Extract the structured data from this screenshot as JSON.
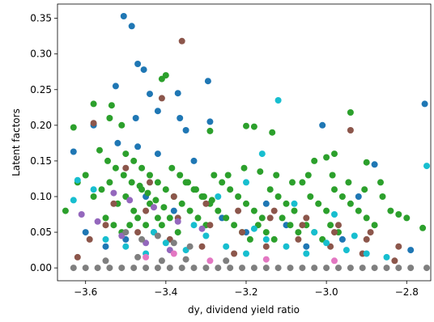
{
  "chart_data": {
    "type": "scatter",
    "title": "",
    "xlabel": "dy, dividend yield ratio",
    "ylabel": "Latent factors",
    "xlim": [
      -3.67,
      -2.74
    ],
    "ylim": [
      -0.018,
      0.37
    ],
    "x_ticks": [
      -3.6,
      -3.4,
      -3.2,
      -3.0,
      -2.8
    ],
    "x_tick_labels": [
      "−3.6",
      "−3.4",
      "−3.2",
      "−3.0",
      "−2.8"
    ],
    "y_ticks": [
      0.0,
      0.05,
      0.1,
      0.15,
      0.2,
      0.25,
      0.3,
      0.35
    ],
    "y_tick_labels": [
      "0.00",
      "0.05",
      "0.10",
      "0.15",
      "0.20",
      "0.25",
      "0.30",
      "0.35"
    ],
    "grid": false,
    "legend": "none",
    "colors": [
      "#1f77b4",
      "#2ca02c",
      "#8c564b",
      "#17becf",
      "#9467bd",
      "#e377c2",
      "#7f7f7f"
    ],
    "series": [
      {
        "color": "#1f77b4",
        "points": [
          [
            -3.505,
            0.353
          ],
          [
            -3.485,
            0.339
          ],
          [
            -3.47,
            0.286
          ],
          [
            -3.455,
            0.278
          ],
          [
            -3.295,
            0.262
          ],
          [
            -3.525,
            0.255
          ],
          [
            -3.37,
            0.245
          ],
          [
            -3.44,
            0.244
          ],
          [
            -3.42,
            0.22
          ],
          [
            -3.365,
            0.21
          ],
          [
            -3.475,
            0.21
          ],
          [
            -3.58,
            0.2
          ],
          [
            -3.35,
            0.193
          ],
          [
            -3.01,
            0.2
          ],
          [
            -3.63,
            0.163
          ],
          [
            -3.47,
            0.17
          ],
          [
            -3.52,
            0.175
          ],
          [
            -3.42,
            0.16
          ],
          [
            -3.33,
            0.15
          ],
          [
            -3.29,
            0.205
          ],
          [
            -2.755,
            0.23
          ],
          [
            -2.88,
            0.145
          ],
          [
            -3.45,
            0.1
          ],
          [
            -3.55,
            0.03
          ],
          [
            -3.2,
            0.05
          ],
          [
            -3.1,
            0.06
          ],
          [
            -2.96,
            0.04
          ],
          [
            -2.79,
            0.025
          ],
          [
            -3.38,
            0.08
          ],
          [
            -3.26,
            0.07
          ],
          [
            -3.15,
            0.09
          ],
          [
            -3.05,
            0.03
          ],
          [
            -2.92,
            0.1
          ],
          [
            -3.6,
            0.05
          ],
          [
            -3.5,
            0.04
          ]
        ]
      },
      {
        "color": "#2ca02c",
        "points": [
          [
            -3.4,
            0.27
          ],
          [
            -3.41,
            0.265
          ],
          [
            -3.58,
            0.23
          ],
          [
            -3.535,
            0.228
          ],
          [
            -3.54,
            0.21
          ],
          [
            -3.51,
            0.2
          ],
          [
            -3.63,
            0.197
          ],
          [
            -3.2,
            0.199
          ],
          [
            -3.18,
            0.198
          ],
          [
            -3.135,
            0.19
          ],
          [
            -3.29,
            0.192
          ],
          [
            -2.94,
            0.218
          ],
          [
            -2.98,
            0.16
          ],
          [
            -3.0,
            0.155
          ],
          [
            -3.03,
            0.15
          ],
          [
            -2.9,
            0.148
          ],
          [
            -3.5,
            0.16
          ],
          [
            -3.48,
            0.15
          ],
          [
            -3.46,
            0.14
          ],
          [
            -3.44,
            0.13
          ],
          [
            -3.42,
            0.12
          ],
          [
            -3.4,
            0.11
          ],
          [
            -3.38,
            0.1
          ],
          [
            -3.36,
            0.09
          ],
          [
            -3.34,
            0.08
          ],
          [
            -3.32,
            0.07
          ],
          [
            -3.3,
            0.06
          ],
          [
            -3.28,
            0.13
          ],
          [
            -3.26,
            0.12
          ],
          [
            -3.24,
            0.11
          ],
          [
            -3.22,
            0.1
          ],
          [
            -3.2,
            0.09
          ],
          [
            -3.18,
            0.08
          ],
          [
            -3.16,
            0.07
          ],
          [
            -3.14,
            0.11
          ],
          [
            -3.12,
            0.1
          ],
          [
            -3.1,
            0.09
          ],
          [
            -3.08,
            0.08
          ],
          [
            -3.06,
            0.12
          ],
          [
            -3.04,
            0.1
          ],
          [
            -3.02,
            0.09
          ],
          [
            -3.0,
            0.08
          ],
          [
            -2.98,
            0.11
          ],
          [
            -2.96,
            0.1
          ],
          [
            -2.94,
            0.09
          ],
          [
            -2.92,
            0.08
          ],
          [
            -2.9,
            0.07
          ],
          [
            -2.88,
            0.06
          ],
          [
            -2.86,
            0.1
          ],
          [
            -2.84,
            0.08
          ],
          [
            -2.82,
            0.075
          ],
          [
            -2.8,
            0.07
          ],
          [
            -2.76,
            0.056
          ],
          [
            -3.65,
            0.08
          ],
          [
            -3.62,
            0.12
          ],
          [
            -3.6,
            0.13
          ],
          [
            -3.58,
            0.1
          ],
          [
            -3.56,
            0.11
          ],
          [
            -3.54,
            0.12
          ],
          [
            -3.52,
            0.09
          ],
          [
            -3.5,
            0.1
          ],
          [
            -3.48,
            0.08
          ],
          [
            -3.46,
            0.11
          ],
          [
            -3.44,
            0.09
          ],
          [
            -3.42,
            0.07
          ],
          [
            -3.55,
            0.07
          ],
          [
            -3.53,
            0.06
          ],
          [
            -3.51,
            0.05
          ],
          [
            -3.49,
            0.06
          ],
          [
            -3.47,
            0.07
          ],
          [
            -3.45,
            0.06
          ],
          [
            -3.43,
            0.05
          ],
          [
            -3.41,
            0.06
          ],
          [
            -3.39,
            0.07
          ],
          [
            -3.37,
            0.05
          ],
          [
            -3.35,
            0.12
          ],
          [
            -3.33,
            0.11
          ],
          [
            -3.31,
            0.1
          ],
          [
            -3.29,
            0.09
          ],
          [
            -3.27,
            0.08
          ],
          [
            -3.25,
            0.07
          ],
          [
            -3.23,
            0.06
          ],
          [
            -3.21,
            0.05
          ],
          [
            -3.19,
            0.04
          ],
          [
            -3.17,
            0.06
          ],
          [
            -3.15,
            0.05
          ],
          [
            -3.13,
            0.04
          ],
          [
            -3.11,
            0.07
          ],
          [
            -3.09,
            0.06
          ],
          [
            -3.07,
            0.05
          ],
          [
            -3.05,
            0.06
          ],
          [
            -3.03,
            0.05
          ],
          [
            -3.01,
            0.04
          ],
          [
            -2.99,
            0.06
          ],
          [
            -2.97,
            0.05
          ],
          [
            -3.565,
            0.165
          ],
          [
            -3.545,
            0.15
          ],
          [
            -3.525,
            0.14
          ],
          [
            -3.505,
            0.13
          ],
          [
            -3.485,
            0.12
          ],
          [
            -3.465,
            0.115
          ],
          [
            -3.445,
            0.105
          ],
          [
            -3.425,
            0.095
          ],
          [
            -3.405,
            0.085
          ],
          [
            -3.385,
            0.14
          ],
          [
            -3.365,
            0.13
          ],
          [
            -3.345,
            0.12
          ],
          [
            -3.325,
            0.11
          ],
          [
            -3.305,
            0.1
          ],
          [
            -3.285,
            0.095
          ],
          [
            -3.245,
            0.13
          ],
          [
            -3.205,
            0.14
          ],
          [
            -3.165,
            0.135
          ],
          [
            -3.125,
            0.13
          ],
          [
            -3.085,
            0.12
          ],
          [
            -3.045,
            0.13
          ],
          [
            -2.985,
            0.13
          ],
          [
            -2.945,
            0.12
          ],
          [
            -2.905,
            0.11
          ],
          [
            -2.865,
            0.12
          ]
        ]
      },
      {
        "color": "#8c564b",
        "points": [
          [
            -3.36,
            0.318
          ],
          [
            -3.41,
            0.238
          ],
          [
            -3.58,
            0.203
          ],
          [
            -2.94,
            0.193
          ],
          [
            -3.5,
            0.14
          ],
          [
            -3.44,
            0.12
          ],
          [
            -3.38,
            0.1
          ],
          [
            -3.3,
            0.09
          ],
          [
            -3.22,
            0.08
          ],
          [
            -3.14,
            0.07
          ],
          [
            -3.06,
            0.06
          ],
          [
            -2.98,
            0.05
          ],
          [
            -2.9,
            0.04
          ],
          [
            -2.82,
            0.03
          ],
          [
            -3.55,
            0.06
          ],
          [
            -3.47,
            0.05
          ],
          [
            -3.39,
            0.04
          ],
          [
            -3.31,
            0.03
          ],
          [
            -3.23,
            0.02
          ],
          [
            -3.15,
            0.03
          ],
          [
            -3.07,
            0.04
          ],
          [
            -2.99,
            0.03
          ],
          [
            -2.91,
            0.02
          ],
          [
            -2.83,
            0.01
          ],
          [
            -3.62,
            0.015
          ],
          [
            -3.53,
            0.09
          ],
          [
            -3.45,
            0.08
          ],
          [
            -3.37,
            0.07
          ],
          [
            -3.29,
            0.06
          ],
          [
            -3.21,
            0.05
          ],
          [
            -3.13,
            0.08
          ],
          [
            -3.05,
            0.07
          ],
          [
            -2.97,
            0.06
          ],
          [
            -2.89,
            0.05
          ],
          [
            -3.59,
            0.04
          ]
        ]
      },
      {
        "color": "#17becf",
        "points": [
          [
            -3.12,
            0.235
          ],
          [
            -3.16,
            0.16
          ],
          [
            -2.75,
            0.143
          ],
          [
            -3.62,
            0.123
          ],
          [
            -3.2,
            0.12
          ],
          [
            -3.55,
            0.04
          ],
          [
            -3.5,
            0.03
          ],
          [
            -3.45,
            0.02
          ],
          [
            -3.4,
            0.035
          ],
          [
            -3.35,
            0.025
          ],
          [
            -3.3,
            0.045
          ],
          [
            -3.25,
            0.03
          ],
          [
            -3.2,
            0.02
          ],
          [
            -3.15,
            0.04
          ],
          [
            -3.1,
            0.03
          ],
          [
            -3.05,
            0.02
          ],
          [
            -3.0,
            0.035
          ],
          [
            -2.95,
            0.025
          ],
          [
            -2.9,
            0.02
          ],
          [
            -2.85,
            0.015
          ],
          [
            -3.63,
            0.095
          ],
          [
            -3.58,
            0.11
          ],
          [
            -3.27,
            0.1
          ],
          [
            -3.08,
            0.09
          ],
          [
            -2.98,
            0.075
          ],
          [
            -3.43,
            0.05
          ],
          [
            -3.33,
            0.06
          ],
          [
            -3.18,
            0.055
          ],
          [
            -3.03,
            0.05
          ],
          [
            -2.93,
            0.045
          ]
        ]
      },
      {
        "color": "#9467bd",
        "points": [
          [
            -3.61,
            0.075
          ],
          [
            -3.53,
            0.105
          ],
          [
            -3.49,
            0.095
          ],
          [
            -3.43,
            0.085
          ],
          [
            -3.37,
            0.065
          ],
          [
            -3.31,
            0.055
          ],
          [
            -3.57,
            0.065
          ],
          [
            -3.51,
            0.045
          ],
          [
            -3.45,
            0.035
          ],
          [
            -3.39,
            0.025
          ]
        ]
      },
      {
        "color": "#e377c2",
        "points": [
          [
            -3.38,
            0.02
          ],
          [
            -3.45,
            0.015
          ],
          [
            -3.29,
            0.01
          ],
          [
            -3.15,
            0.012
          ],
          [
            -2.98,
            0.01
          ]
        ]
      },
      {
        "color": "#7f7f7f",
        "points": [
          [
            -3.63,
            0.0
          ],
          [
            -3.6,
            0.0
          ],
          [
            -3.57,
            0.0
          ],
          [
            -3.54,
            0.0
          ],
          [
            -3.51,
            0.0
          ],
          [
            -3.48,
            0.0
          ],
          [
            -3.45,
            0.0
          ],
          [
            -3.42,
            0.0
          ],
          [
            -3.39,
            0.0
          ],
          [
            -3.36,
            0.0
          ],
          [
            -3.33,
            0.0
          ],
          [
            -3.3,
            0.0
          ],
          [
            -3.27,
            0.0
          ],
          [
            -3.24,
            0.0
          ],
          [
            -3.21,
            0.0
          ],
          [
            -3.18,
            0.0
          ],
          [
            -3.15,
            0.0
          ],
          [
            -3.12,
            0.0
          ],
          [
            -3.09,
            0.0
          ],
          [
            -3.06,
            0.0
          ],
          [
            -3.03,
            0.0
          ],
          [
            -3.0,
            0.0
          ],
          [
            -2.97,
            0.0
          ],
          [
            -2.94,
            0.0
          ],
          [
            -2.91,
            0.0
          ],
          [
            -2.88,
            0.0
          ],
          [
            -2.85,
            0.0
          ],
          [
            -2.82,
            0.0
          ],
          [
            -2.79,
            0.0
          ],
          [
            -2.75,
            0.0
          ],
          [
            -3.5,
            0.05
          ],
          [
            -3.46,
            0.04
          ],
          [
            -3.42,
            0.045
          ],
          [
            -3.38,
            0.035
          ],
          [
            -3.34,
            0.03
          ],
          [
            -3.55,
            0.01
          ],
          [
            -3.47,
            0.015
          ],
          [
            -3.41,
            0.01
          ],
          [
            -3.35,
            0.012
          ],
          [
            -3.25,
            0.01
          ]
        ]
      }
    ]
  }
}
